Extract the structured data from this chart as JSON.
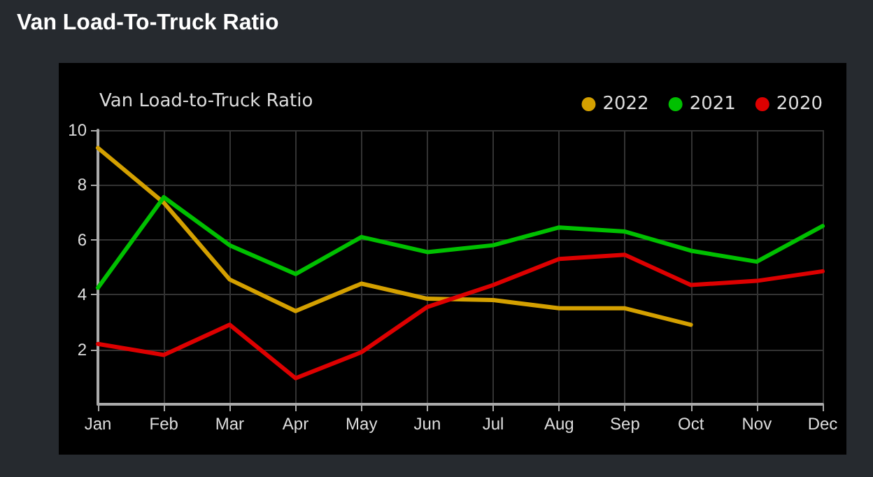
{
  "chart_data": {
    "type": "line",
    "title": "Van Load-To-Truck Ratio",
    "subtitle": "Van Load-to-Truck Ratio",
    "categories": [
      "Jan",
      "Feb",
      "Mar",
      "Apr",
      "May",
      "Jun",
      "Jul",
      "Aug",
      "Sep",
      "Oct",
      "Nov",
      "Dec"
    ],
    "series": [
      {
        "name": "2022",
        "color": "#d4a000",
        "values": [
          9.35,
          7.35,
          4.55,
          3.4,
          4.4,
          3.85,
          3.8,
          3.5,
          3.5,
          2.9,
          null,
          null
        ]
      },
      {
        "name": "2021",
        "color": "#00c000",
        "values": [
          4.25,
          7.55,
          5.8,
          4.75,
          6.1,
          5.55,
          5.8,
          6.45,
          6.3,
          5.6,
          5.2,
          6.5
        ]
      },
      {
        "name": "2020",
        "color": "#dd0000",
        "values": [
          2.2,
          1.8,
          2.9,
          0.95,
          1.9,
          3.55,
          4.35,
          5.3,
          5.45,
          4.35,
          4.5,
          4.85
        ]
      }
    ],
    "ylim": [
      0,
      10
    ],
    "yticks": [
      2,
      4,
      6,
      8,
      10
    ],
    "grid": true,
    "legend": "top right",
    "marker": "none",
    "line_style": "solid"
  }
}
